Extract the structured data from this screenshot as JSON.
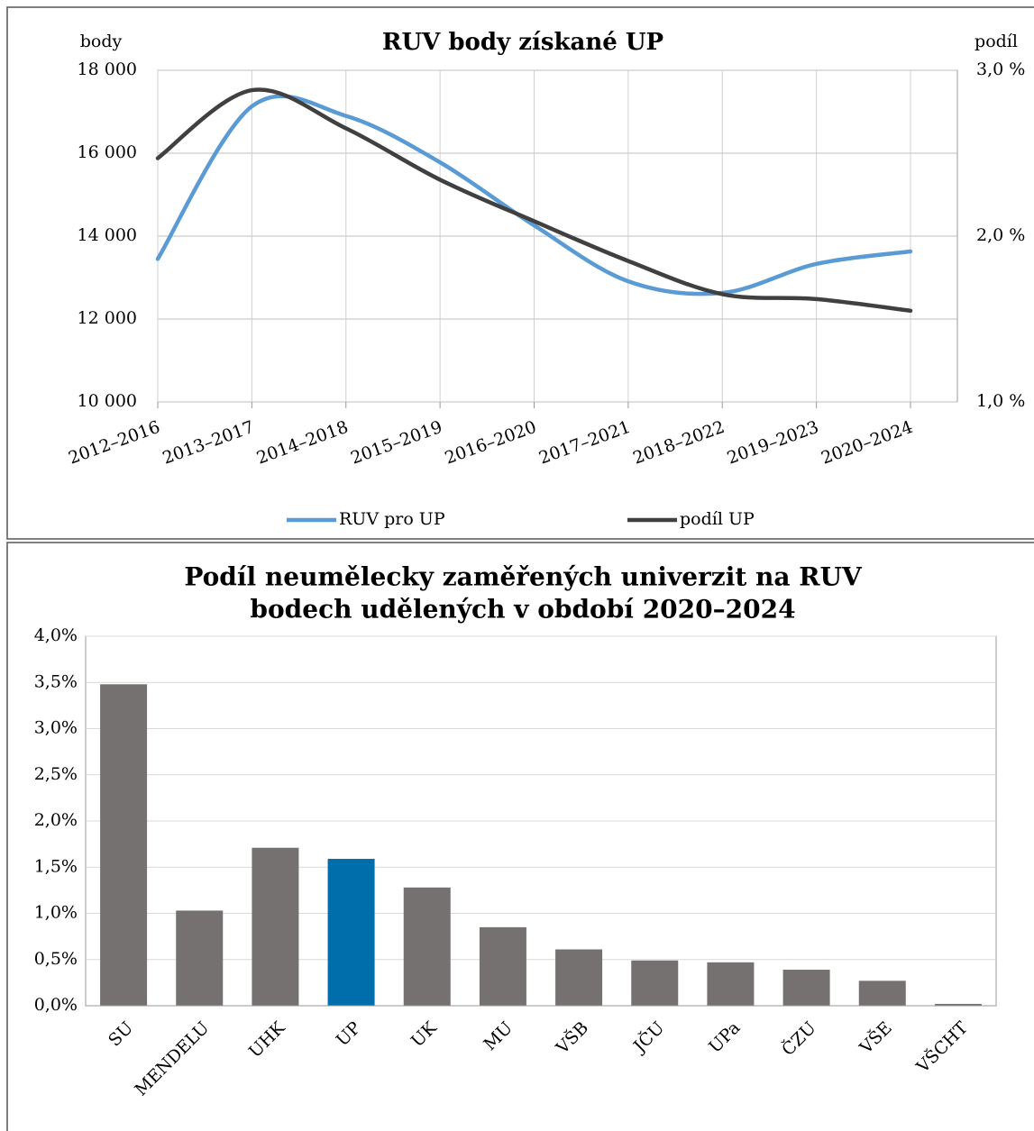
{
  "chart_data": [
    {
      "type": "line",
      "title": "RUV body získané UP",
      "ylabel": "body",
      "y2label": "podíl",
      "categories": [
        "2012–2016",
        "2013–2017",
        "2014–2018",
        "2015–2019",
        "2016–2020",
        "2017–2021",
        "2018–2022",
        "2019–2023",
        "2020–2024"
      ],
      "series": [
        {
          "name": "RUV pro UP",
          "color": "#5b9bd5",
          "values": [
            13450,
            17130,
            16900,
            15780,
            14260,
            12910,
            12630,
            13330,
            13630
          ]
        },
        {
          "name": "podíl UP",
          "color": "#404040",
          "axis": "y2",
          "values": [
            2.47,
            2.88,
            2.65,
            2.34,
            2.09,
            1.85,
            1.65,
            1.62,
            1.55
          ]
        }
      ],
      "ylim": [
        10000,
        18000
      ],
      "yticks": [
        {
          "value": 10000,
          "label": "10 000"
        },
        {
          "value": 12000,
          "label": "12 000"
        },
        {
          "value": 14000,
          "label": "14 000"
        },
        {
          "value": 16000,
          "label": "16 000"
        },
        {
          "value": 18000,
          "label": "18 000"
        }
      ],
      "y2lim": [
        1,
        3
      ],
      "y2ticks": [
        {
          "value": 1,
          "label": "1,0 %"
        },
        {
          "value": 2,
          "label": "2,0 %"
        },
        {
          "value": 3,
          "label": "3,0 %"
        }
      ],
      "grid": true,
      "legend": "bottom"
    },
    {
      "type": "bar",
      "title": [
        "Podíl neumělecky zaměřených univerzit na RUV",
        "bodech udělených v období 2020–2024"
      ],
      "categories": [
        "SU",
        "MENDELU",
        "UHK",
        "UP",
        "UK",
        "MU",
        "VŠB",
        "JČU",
        "UPa",
        "ČZU",
        "VŠE",
        "VŠCHT"
      ],
      "values": [
        3.48,
        1.03,
        1.71,
        1.59,
        1.28,
        0.85,
        0.61,
        0.49,
        0.47,
        0.39,
        0.27,
        0.02
      ],
      "colors": [
        "#767171",
        "#767171",
        "#767171",
        "#006eaa",
        "#767171",
        "#767171",
        "#767171",
        "#767171",
        "#767171",
        "#767171",
        "#767171",
        "#767171"
      ],
      "ylim": [
        0,
        4
      ],
      "yticks": [
        {
          "value": 0,
          "label": "0,0%"
        },
        {
          "value": 0.5,
          "label": "0,5%"
        },
        {
          "value": 1,
          "label": "1,0%"
        },
        {
          "value": 1.5,
          "label": "1,5%"
        },
        {
          "value": 2,
          "label": "2,0%"
        },
        {
          "value": 2.5,
          "label": "2,5%"
        },
        {
          "value": 3,
          "label": "3,0%"
        },
        {
          "value": 3.5,
          "label": "3,5%"
        },
        {
          "value": 4,
          "label": "4,0%"
        }
      ],
      "grid": true
    }
  ]
}
